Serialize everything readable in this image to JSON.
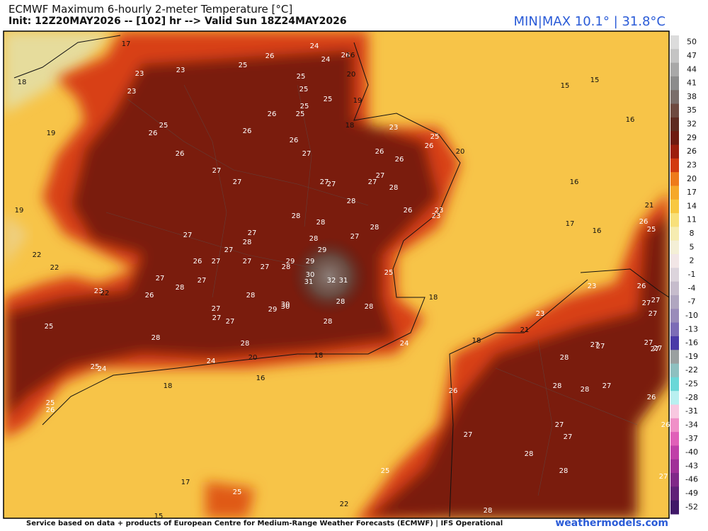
{
  "header": {
    "title": "ECMWF Maximum 6-hourly 2-meter Temperature [°C]",
    "subtitle": "Init: 12Z20MAY2026 -- [102] hr --> Valid Sun 18Z24MAY2026",
    "minmax": "MIN|MAX 10.1° | 31.8°C"
  },
  "footer": {
    "credit": "Service based on data + products of European Centre for Medium-Range Weather Forecasts (ECMWF) | IFS Operational",
    "site": "weathermodels.com"
  },
  "colorbar": {
    "ticks": [
      50,
      47,
      44,
      41,
      38,
      35,
      32,
      29,
      26,
      23,
      20,
      17,
      14,
      11,
      8,
      5,
      2,
      -1,
      -4,
      -7,
      -10,
      -13,
      -16,
      -19,
      -22,
      -25,
      -28,
      -31,
      -34,
      -37,
      -40,
      -43,
      -46,
      -49,
      -52
    ],
    "colors": [
      "#dcdcdc",
      "#c4c4c4",
      "#a8a8a8",
      "#8c8c8c",
      "#7a6e6a",
      "#6e4a40",
      "#5e2a20",
      "#6e1a10",
      "#9c1e0c",
      "#d23a10",
      "#ee7a1a",
      "#f6a82a",
      "#f8c840",
      "#f8e07a",
      "#f6ecb0",
      "#f4efd6",
      "#f2e6e6",
      "#dcd4dc",
      "#c6bccc",
      "#b0a6c0",
      "#9a8cba",
      "#7c6cb6",
      "#4a3aa8",
      "#9aa0a0",
      "#8ec0c0",
      "#6ad8d8",
      "#b8f0f0",
      "#f8c8e0",
      "#f090c8",
      "#e060b8",
      "#c040a8",
      "#a03098",
      "#802888",
      "#602078",
      "#401868"
    ]
  },
  "map_labels": [
    17,
    26,
    24,
    26,
    16,
    25,
    24,
    23,
    23,
    18,
    25,
    20,
    15,
    15,
    23,
    25,
    25,
    19,
    25,
    25,
    26,
    16,
    25,
    26,
    18,
    23,
    19,
    26,
    25,
    26,
    26,
    20,
    26,
    27,
    26,
    26,
    27,
    27,
    27,
    27,
    27,
    27,
    28,
    16,
    28,
    21,
    19,
    23,
    26,
    23,
    26,
    25,
    28,
    28,
    17,
    16,
    27,
    27,
    28,
    27,
    28,
    28,
    27,
    29,
    22,
    22,
    26,
    27,
    27,
    29,
    27,
    28,
    29,
    30,
    25,
    27,
    27,
    28,
    31,
    32,
    31,
    23,
    22,
    26,
    23,
    26,
    28,
    18,
    27,
    27,
    28,
    30,
    30,
    29,
    27,
    28,
    27,
    23,
    27,
    27,
    28,
    25,
    21,
    28,
    18,
    27,
    27,
    27,
    27,
    27,
    28,
    24,
    18,
    20,
    28,
    24,
    25,
    24,
    16,
    18,
    28,
    28,
    27,
    26,
    26,
    25,
    26,
    26,
    27,
    27,
    27,
    28,
    28,
    25,
    27,
    17,
    25,
    22,
    28,
    15
  ]
}
